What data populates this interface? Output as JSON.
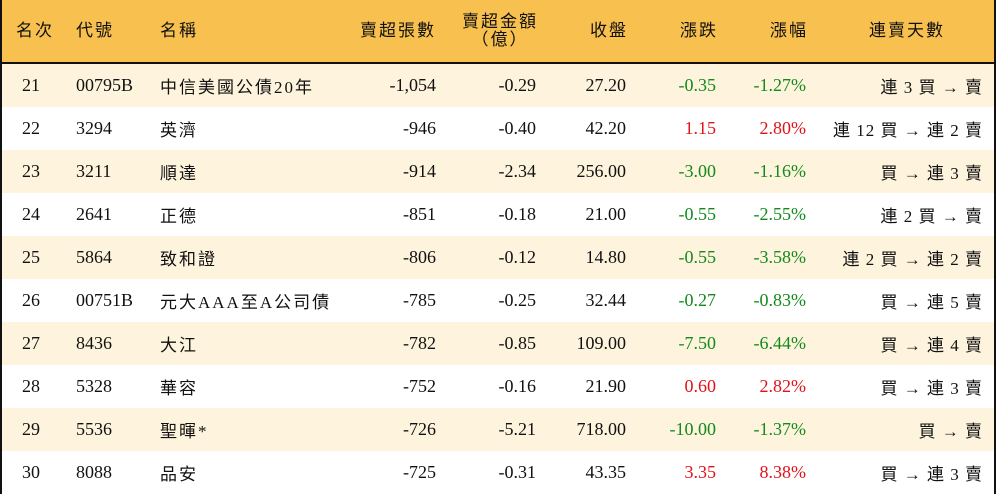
{
  "colors": {
    "header_bg": "#F8C04E",
    "row_alt_bg": "#FEF4DD",
    "up": "#E0131A",
    "down": "#138A1B",
    "border": "#111111"
  },
  "headers": {
    "rank": "名次",
    "code": "代號",
    "name": "名稱",
    "net_sell_lots": "賣超張數",
    "net_sell_amount_line1": "賣超金額",
    "net_sell_amount_line2": "（億）",
    "close": "收盤",
    "change": "漲跌",
    "change_pct": "漲幅",
    "streak": "連賣天數"
  },
  "rows": [
    {
      "rank": "21",
      "code": "00795B",
      "name": "中信美國公債20年",
      "lots": "-1,054",
      "amount": "-0.29",
      "close": "27.20",
      "change": "-0.35",
      "pct": "-1.27%",
      "dir": "down",
      "streak": "連 3 買 → 賣"
    },
    {
      "rank": "22",
      "code": "3294",
      "name": "英濟",
      "lots": "-946",
      "amount": "-0.40",
      "close": "42.20",
      "change": "1.15",
      "pct": "2.80%",
      "dir": "up",
      "streak": "連 12 買 → 連 2 賣"
    },
    {
      "rank": "23",
      "code": "3211",
      "name": "順達",
      "lots": "-914",
      "amount": "-2.34",
      "close": "256.00",
      "change": "-3.00",
      "pct": "-1.16%",
      "dir": "down",
      "streak": "買 → 連 3 賣"
    },
    {
      "rank": "24",
      "code": "2641",
      "name": "正德",
      "lots": "-851",
      "amount": "-0.18",
      "close": "21.00",
      "change": "-0.55",
      "pct": "-2.55%",
      "dir": "down",
      "streak": "連 2 買 → 賣"
    },
    {
      "rank": "25",
      "code": "5864",
      "name": "致和證",
      "lots": "-806",
      "amount": "-0.12",
      "close": "14.80",
      "change": "-0.55",
      "pct": "-3.58%",
      "dir": "down",
      "streak": "連 2 買 → 連 2 賣"
    },
    {
      "rank": "26",
      "code": "00751B",
      "name": "元大AAA至A公司債",
      "lots": "-785",
      "amount": "-0.25",
      "close": "32.44",
      "change": "-0.27",
      "pct": "-0.83%",
      "dir": "down",
      "streak": "買 → 連 5 賣"
    },
    {
      "rank": "27",
      "code": "8436",
      "name": "大江",
      "lots": "-782",
      "amount": "-0.85",
      "close": "109.00",
      "change": "-7.50",
      "pct": "-6.44%",
      "dir": "down",
      "streak": "買 → 連 4 賣"
    },
    {
      "rank": "28",
      "code": "5328",
      "name": "華容",
      "lots": "-752",
      "amount": "-0.16",
      "close": "21.90",
      "change": "0.60",
      "pct": "2.82%",
      "dir": "up",
      "streak": "買 → 連 3 賣"
    },
    {
      "rank": "29",
      "code": "5536",
      "name": "聖暉*",
      "lots": "-726",
      "amount": "-5.21",
      "close": "718.00",
      "change": "-10.00",
      "pct": "-1.37%",
      "dir": "down",
      "streak": "買 → 賣"
    },
    {
      "rank": "30",
      "code": "8088",
      "name": "品安",
      "lots": "-725",
      "amount": "-0.31",
      "close": "43.35",
      "change": "3.35",
      "pct": "8.38%",
      "dir": "up",
      "streak": "買 → 連 3 賣"
    }
  ]
}
